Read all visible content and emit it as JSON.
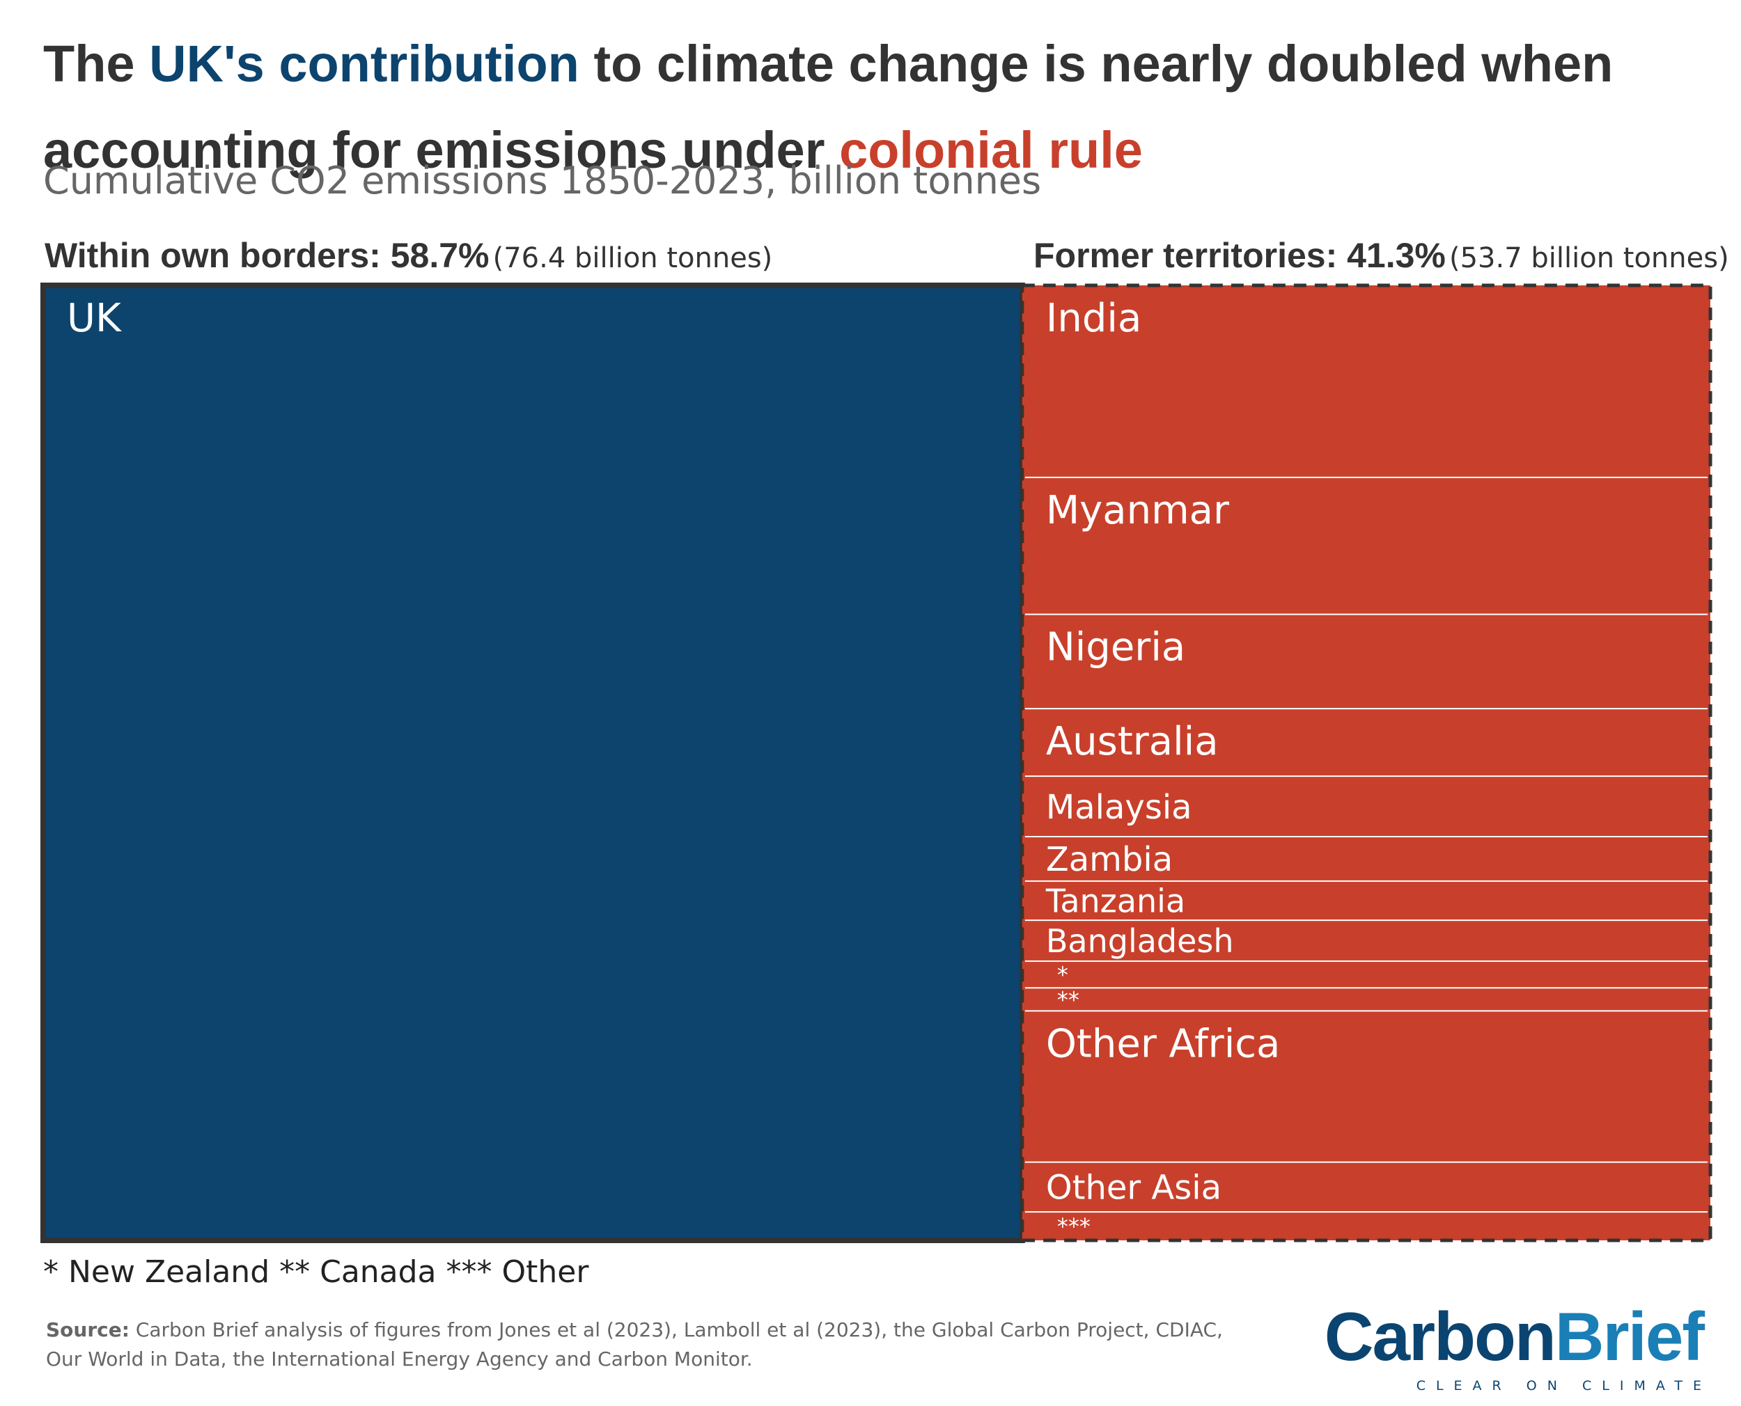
{
  "title": {
    "part1": "The ",
    "highlight1": "UK's contribution",
    "part2": " to climate change is nearly doubled when accounting for emissions under ",
    "highlight2": "colonial rule"
  },
  "subtitle": "Cumulative CO2 emissions 1850-2023, billion tonnes",
  "groups": {
    "own": {
      "label": "Within own borders: 58.7%",
      "value_text": "(76.4 billion tonnes)"
    },
    "former": {
      "label": "Former territories: 41.3%",
      "value_text": "(53.7 billion tonnes)"
    }
  },
  "colors": {
    "uk": "#0d446e",
    "former": "#c8402b",
    "title_blue": "#0d446e",
    "title_red": "#c8402b",
    "border": "#333333",
    "divider": "#ffffff"
  },
  "chart_data": {
    "type": "treemap",
    "title": "Cumulative CO2 emissions 1850-2023, billion tonnes",
    "unit": "billion tonnes",
    "groups": [
      {
        "name": "Within own borders",
        "share_pct": 58.7,
        "total": 76.4,
        "items": [
          {
            "label": "UK",
            "value": 76.4
          }
        ]
      },
      {
        "name": "Former territories",
        "share_pct": 41.3,
        "total": 53.7,
        "items": [
          {
            "label": "India",
            "value": 10.8
          },
          {
            "label": "Myanmar",
            "value": 7.7
          },
          {
            "label": "Nigeria",
            "value": 5.3
          },
          {
            "label": "Australia",
            "value": 3.8
          },
          {
            "label": "Malaysia",
            "value": 3.4
          },
          {
            "label": "Zambia",
            "value": 2.5
          },
          {
            "label": "Tanzania",
            "value": 2.2
          },
          {
            "label": "Bangladesh",
            "value": 2.3
          },
          {
            "label": "*",
            "value": 1.5
          },
          {
            "label": "**",
            "value": 1.3
          },
          {
            "label": "Other Africa",
            "value": 8.5
          },
          {
            "label": "Other Asia",
            "value": 2.8
          },
          {
            "label": "***",
            "value": 1.6
          }
        ]
      }
    ]
  },
  "footnote": "* New Zealand ** Canada *** Other",
  "source": {
    "label": "Source:",
    "text": " Carbon Brief analysis of figures from Jones et al (2023), Lamboll et al (2023), the Global Carbon Project, CDIAC, Our World in Data, the International Energy Agency and Carbon Monitor."
  },
  "logo": {
    "carbon": "Carbon",
    "brief": "Brief",
    "tagline": "CLEAR ON CLIMATE"
  }
}
